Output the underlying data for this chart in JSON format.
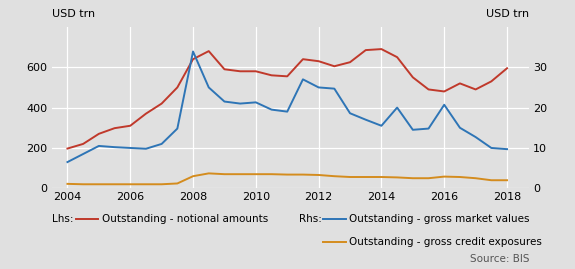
{
  "title_left": "USD trn",
  "title_right": "USD trn",
  "source": "Source: BIS",
  "background_color": "#e0e0e0",
  "lhs_ylim": [
    0,
    800
  ],
  "rhs_ylim": [
    0,
    40
  ],
  "lhs_yticks": [
    0,
    200,
    400,
    600
  ],
  "rhs_yticks": [
    0,
    10,
    20,
    30
  ],
  "xticks": [
    2004,
    2006,
    2008,
    2010,
    2012,
    2014,
    2016,
    2018
  ],
  "xlim": [
    2003.5,
    2018.7
  ],
  "notional": {
    "label": "Outstanding - notional amounts",
    "color": "#c0392b",
    "x": [
      2004.0,
      2004.5,
      2005.0,
      2005.5,
      2006.0,
      2006.5,
      2007.0,
      2007.5,
      2008.0,
      2008.5,
      2009.0,
      2009.5,
      2010.0,
      2010.5,
      2011.0,
      2011.5,
      2012.0,
      2012.5,
      2013.0,
      2013.5,
      2014.0,
      2014.5,
      2015.0,
      2015.5,
      2016.0,
      2016.5,
      2017.0,
      2017.5,
      2018.0
    ],
    "y": [
      197,
      220,
      270,
      298,
      310,
      370,
      420,
      500,
      640,
      680,
      590,
      580,
      580,
      560,
      555,
      640,
      630,
      605,
      625,
      685,
      690,
      650,
      550,
      490,
      480,
      520,
      490,
      530,
      595
    ]
  },
  "market_values": {
    "label": "Outstanding - gross market values",
    "color": "#2e75b6",
    "x": [
      2004.0,
      2004.5,
      2005.0,
      2005.5,
      2006.0,
      2006.5,
      2007.0,
      2007.5,
      2008.0,
      2008.5,
      2009.0,
      2009.5,
      2010.0,
      2010.5,
      2011.0,
      2011.5,
      2012.0,
      2012.5,
      2013.0,
      2013.5,
      2014.0,
      2014.5,
      2015.0,
      2015.5,
      2016.0,
      2016.5,
      2017.0,
      2017.5,
      2018.0
    ],
    "y": [
      6.5,
      8.5,
      10.5,
      10.2,
      10.0,
      9.8,
      11.0,
      14.8,
      33.9,
      25.0,
      21.5,
      21.0,
      21.3,
      19.5,
      19.0,
      27.0,
      25.0,
      24.7,
      18.6,
      17.0,
      15.5,
      20.0,
      14.5,
      14.8,
      20.7,
      15.0,
      12.7,
      10.0,
      9.7
    ]
  },
  "credit_exposures": {
    "label": "Outstanding - gross credit exposures",
    "color": "#d48c1e",
    "x": [
      2004.0,
      2004.5,
      2005.0,
      2005.5,
      2006.0,
      2006.5,
      2007.0,
      2007.5,
      2008.0,
      2008.5,
      2009.0,
      2009.5,
      2010.0,
      2010.5,
      2011.0,
      2011.5,
      2012.0,
      2012.5,
      2013.0,
      2013.5,
      2014.0,
      2014.5,
      2015.0,
      2015.5,
      2016.0,
      2016.5,
      2017.0,
      2017.5,
      2018.0
    ],
    "y": [
      1.1,
      1.0,
      1.0,
      1.0,
      1.0,
      1.0,
      1.0,
      1.2,
      3.0,
      3.7,
      3.5,
      3.5,
      3.5,
      3.5,
      3.4,
      3.4,
      3.3,
      3.0,
      2.8,
      2.8,
      2.8,
      2.7,
      2.5,
      2.5,
      2.9,
      2.8,
      2.5,
      2.0,
      2.0
    ]
  },
  "legend_lhs_prefix": "Lhs:",
  "legend_rhs_prefix": "Rhs:",
  "label_fontsize": 7.5,
  "tick_fontsize": 8,
  "source_fontsize": 7.5
}
